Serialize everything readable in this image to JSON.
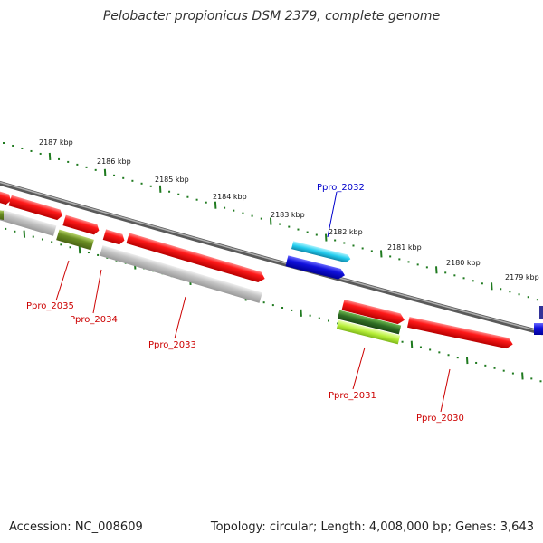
{
  "title": "Pelobacter propionicus DSM 2379, complete genome",
  "footer": {
    "accession": "Accession: NC_008609",
    "summary": "Topology: circular; Length: 4,008,000 bp; Genes: 3,643"
  },
  "colors": {
    "backbone": "#7a7a7a",
    "gene_red": "#ee1111",
    "gene_gray": "#bbbbbb",
    "gene_olive": "#6b8e23",
    "gene_blue": "#1111dd",
    "gene_cyan": "#22ccee",
    "gene_green": "#3a7a2a",
    "gene_lime": "#b8f03a",
    "ticks": "#1f7a1f",
    "label_red": "#cc0000",
    "label_blue": "#0000cc"
  },
  "kbp_labels": [
    "2187 kbp",
    "2186 kbp",
    "2185 kbp",
    "2184 kbp",
    "2183 kbp",
    "2182 kbp",
    "2181 kbp",
    "2180 kbp",
    "2179 kbp"
  ],
  "gene_labels": {
    "ppro_2032": "Ppro_2032",
    "ppro_2035": "Ppro_2035",
    "ppro_2034": "Ppro_2034",
    "ppro_2033": "Ppro_2033",
    "ppro_2031": "Ppro_2031",
    "ppro_2030": "Ppro_2030"
  }
}
